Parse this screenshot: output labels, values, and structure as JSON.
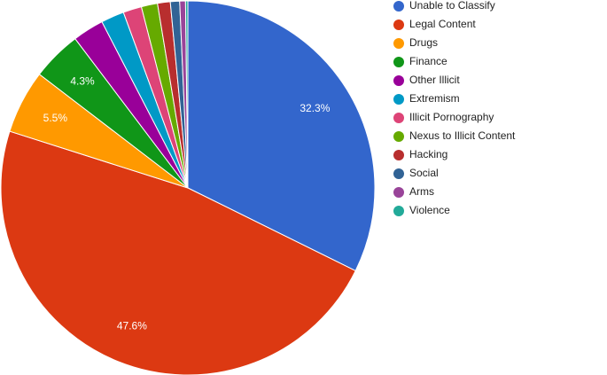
{
  "chart_data": {
    "type": "pie",
    "categories": [
      "Unable to Classify",
      "Legal Content",
      "Drugs",
      "Finance",
      "Other Illicit",
      "Extremism",
      "Illicit Pornography",
      "Nexus to Illicit Content",
      "Hacking",
      "Social",
      "Arms",
      "Violence"
    ],
    "values": [
      32.3,
      47.6,
      5.5,
      4.3,
      2.7,
      2.0,
      1.6,
      1.4,
      1.1,
      0.8,
      0.5,
      0.2
    ],
    "value_labels": [
      "32.3%",
      "47.6%",
      "5.5%",
      "4.3%",
      null,
      null,
      null,
      null,
      null,
      null,
      null,
      null
    ],
    "colors": [
      "#3366cc",
      "#dc3912",
      "#ff9900",
      "#109618",
      "#990099",
      "#0099c6",
      "#dd4477",
      "#66aa00",
      "#b82e2e",
      "#316395",
      "#994499",
      "#22aa99"
    ],
    "legend": "right"
  }
}
